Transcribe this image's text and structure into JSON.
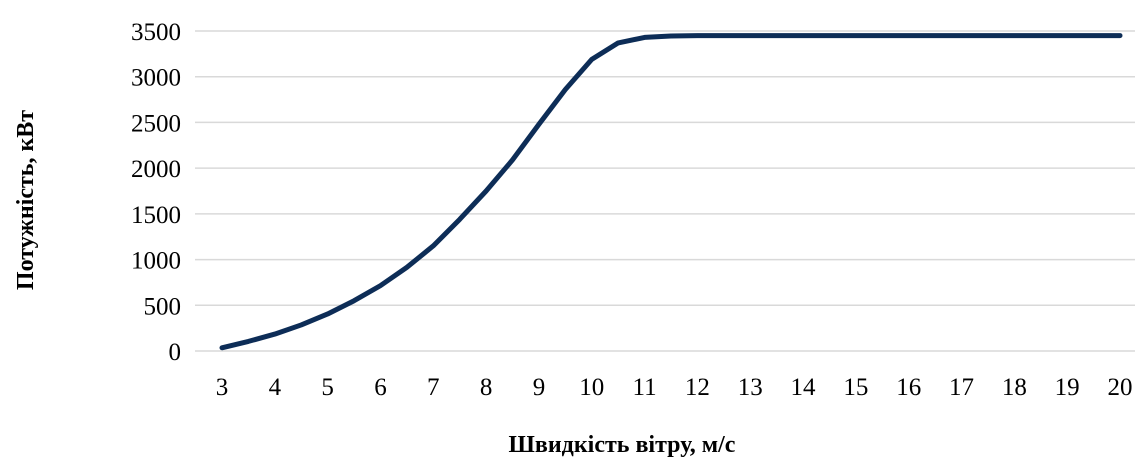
{
  "chart_data": {
    "type": "line",
    "title": "",
    "xlabel": "Швидкість вітру, м/с",
    "ylabel": "Потужність, кВт",
    "xlim": [
      3,
      20
    ],
    "ylim": [
      0,
      3500
    ],
    "x_ticks": [
      "3",
      "4",
      "5",
      "6",
      "7",
      "8",
      "9",
      "10",
      "11",
      "12",
      "13",
      "14",
      "15",
      "16",
      "17",
      "18",
      "19",
      "20"
    ],
    "y_ticks": [
      "0",
      "500",
      "1000",
      "1500",
      "2000",
      "2500",
      "3000",
      "3500"
    ],
    "grid": true,
    "legend": "none",
    "series": [
      {
        "color": "#0d2d57",
        "x": [
          3,
          3.5,
          4,
          4.5,
          5,
          5.5,
          6,
          6.5,
          7,
          7.5,
          8,
          8.5,
          9,
          9.5,
          10,
          10.5,
          11,
          11.5,
          12,
          13,
          14,
          15,
          16,
          17,
          18,
          19,
          20
        ],
        "y": [
          35,
          105,
          185,
          285,
          405,
          550,
          715,
          915,
          1150,
          1440,
          1750,
          2090,
          2480,
          2860,
          3190,
          3370,
          3430,
          3445,
          3450,
          3450,
          3450,
          3450,
          3450,
          3450,
          3450,
          3450,
          3450
        ]
      }
    ]
  }
}
